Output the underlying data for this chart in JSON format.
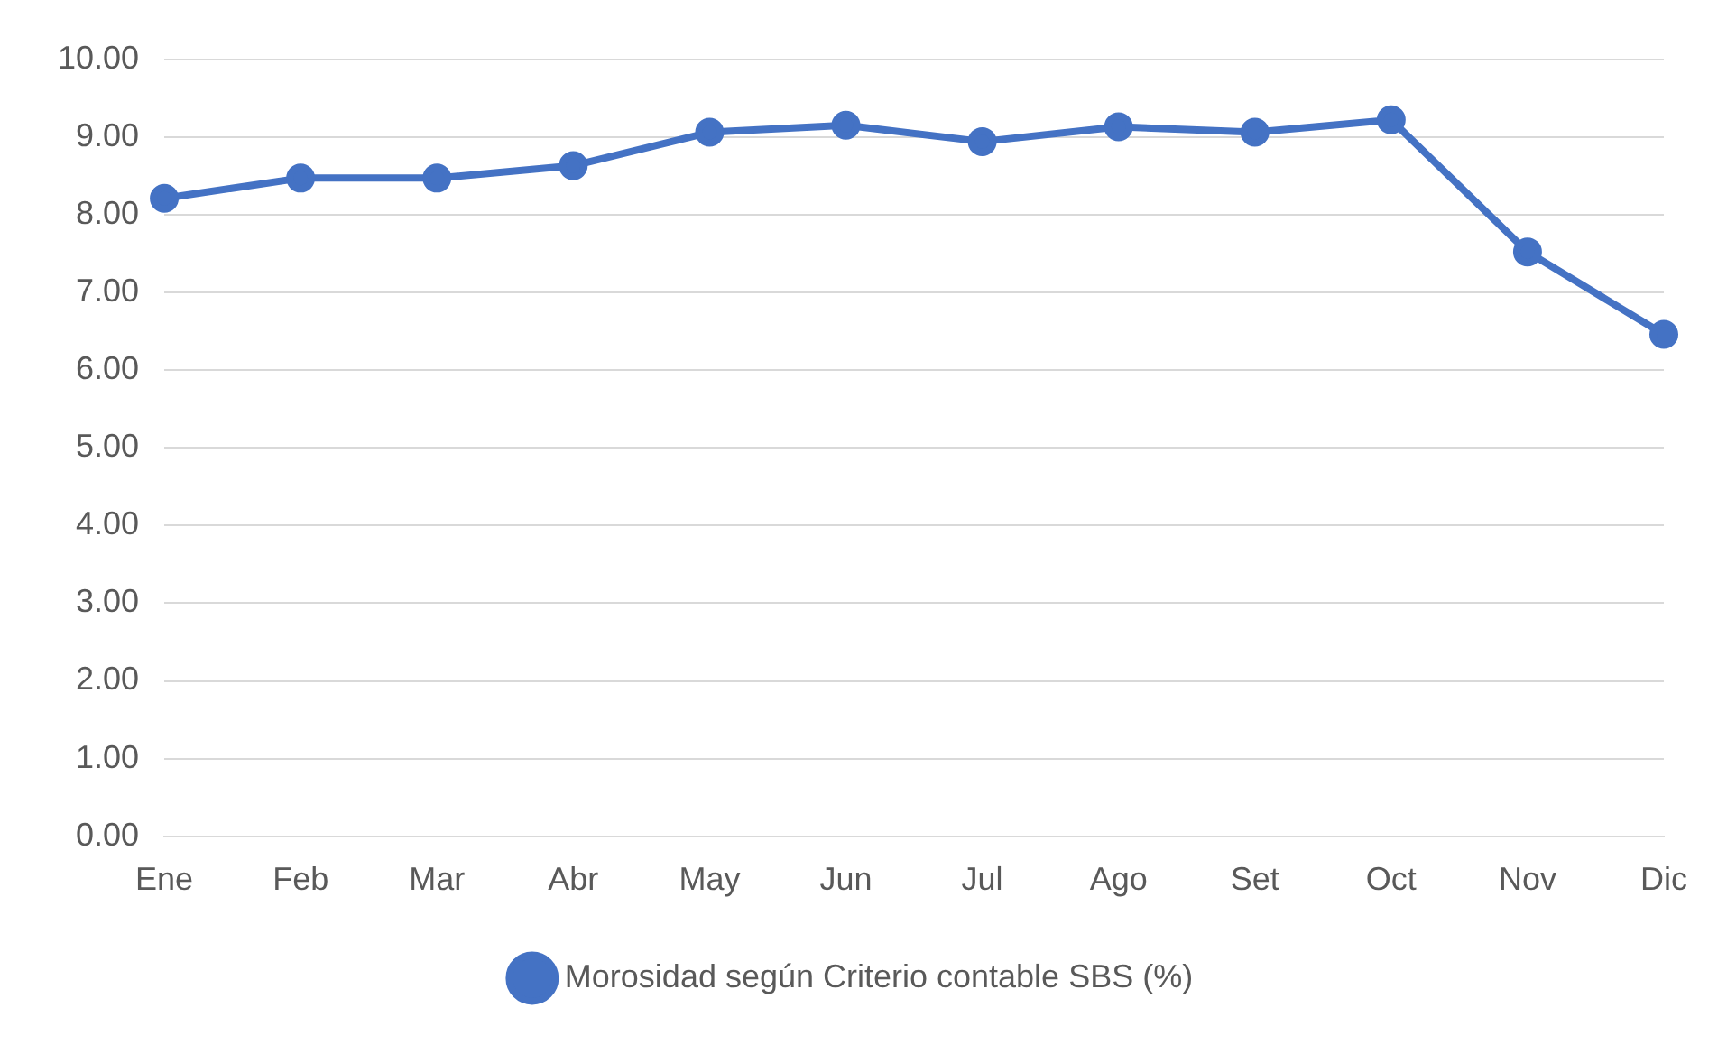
{
  "chart_data": {
    "type": "line",
    "categories": [
      "Ene",
      "Feb",
      "Mar",
      "Abr",
      "May",
      "Jun",
      "Jul",
      "Ago",
      "Set",
      "Oct",
      "Nov",
      "Dic"
    ],
    "series": [
      {
        "name": "Morosidad según Criterio contable SBS (%)",
        "color": "#4472c4",
        "values": [
          8.21,
          8.47,
          8.47,
          8.63,
          9.06,
          9.15,
          8.94,
          9.13,
          9.06,
          9.22,
          7.52,
          6.46
        ]
      }
    ],
    "ylim": [
      0,
      10
    ],
    "yticks": [
      {
        "value": 0,
        "label": "0.00"
      },
      {
        "value": 1,
        "label": "1.00"
      },
      {
        "value": 2,
        "label": "2.00"
      },
      {
        "value": 3,
        "label": "3.00"
      },
      {
        "value": 4,
        "label": "4.00"
      },
      {
        "value": 5,
        "label": "5.00"
      },
      {
        "value": 6,
        "label": "6.00"
      },
      {
        "value": 7,
        "label": "7.00"
      },
      {
        "value": 8,
        "label": "8.00"
      },
      {
        "value": 9,
        "label": "9.00"
      },
      {
        "value": 10,
        "label": "10.00"
      }
    ],
    "grid": "y",
    "legend": "bottom",
    "marker": "circle",
    "line_style": "solid"
  }
}
